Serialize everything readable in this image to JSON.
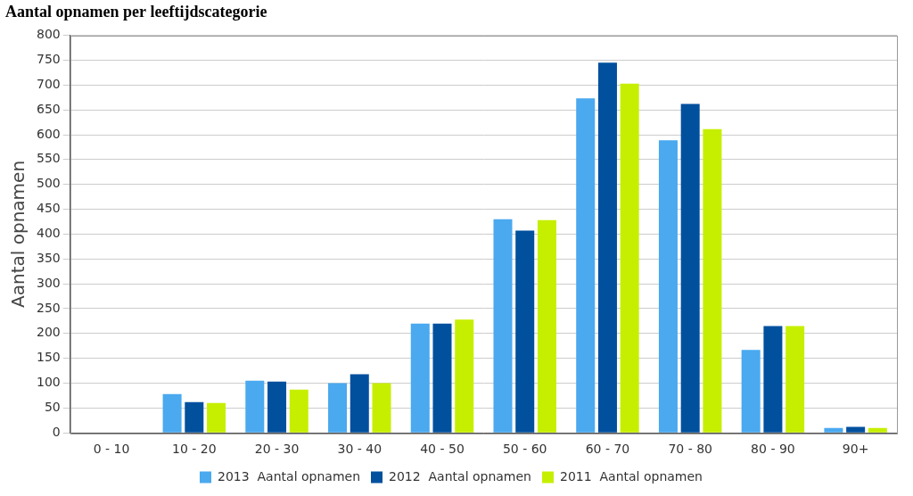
{
  "chart_data": {
    "type": "bar",
    "title": "Aantal opnamen per leeftijdscategorie",
    "y_label": "Aantal opnamen",
    "categories": [
      "0 - 10",
      "10 - 20",
      "20 - 30",
      "30 - 40",
      "40 - 50",
      "50 - 60",
      "60 - 70",
      "70 - 80",
      "80 - 90",
      "90+"
    ],
    "series": [
      {
        "name": "2013  Aantal opnamen",
        "color": "#4aa9ef",
        "values": [
          0,
          78,
          105,
          100,
          220,
          430,
          673,
          589,
          167,
          10
        ]
      },
      {
        "name": "2012  Aantal opnamen",
        "color": "#00509e",
        "values": [
          0,
          62,
          103,
          118,
          220,
          407,
          745,
          662,
          215,
          12
        ]
      },
      {
        "name": "2011  Aantal opnamen",
        "color": "#c6ef00",
        "values": [
          0,
          60,
          87,
          100,
          228,
          428,
          703,
          611,
          215,
          10
        ]
      }
    ],
    "ylim": [
      0,
      800
    ],
    "yticks": [
      0,
      50,
      100,
      150,
      200,
      250,
      300,
      350,
      400,
      450,
      500,
      550,
      600,
      650,
      700,
      750,
      800
    ],
    "grid": true,
    "legend": "bottom"
  }
}
